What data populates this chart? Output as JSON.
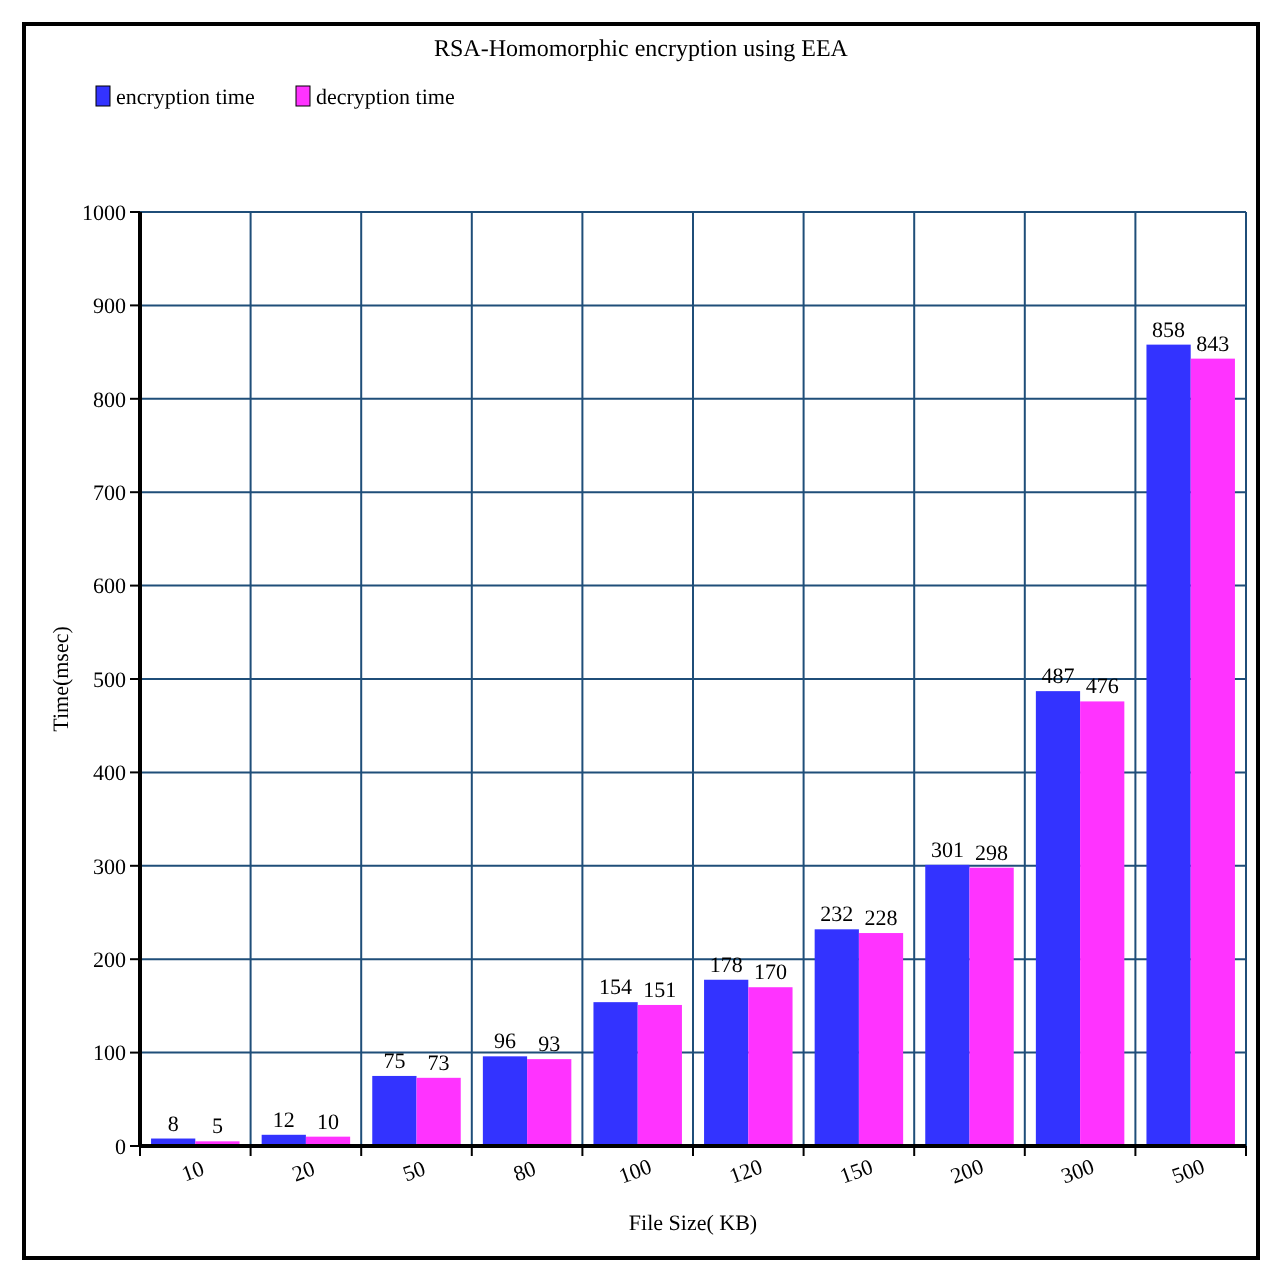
{
  "chart_data": {
    "type": "bar",
    "title": "RSA-Homomorphic encryption using EEA",
    "xlabel": "File Size( KB)",
    "ylabel": "Time(msec)",
    "categories": [
      "10",
      "20",
      "50",
      "80",
      "100",
      "120",
      "150",
      "200",
      "300",
      "500"
    ],
    "series": [
      {
        "name": "encryption time",
        "color": "#3333ff",
        "values": [
          8,
          12,
          75,
          96,
          154,
          178,
          232,
          301,
          487,
          858
        ]
      },
      {
        "name": "decryption time",
        "color": "#ff33ff",
        "values": [
          5,
          10,
          73,
          93,
          151,
          170,
          228,
          298,
          476,
          843
        ]
      }
    ],
    "ylim": [
      0,
      1000
    ],
    "yticks": [
      0,
      100,
      200,
      300,
      400,
      500,
      600,
      700,
      800,
      900,
      1000
    ],
    "grid": true,
    "legend": "top left",
    "data_labels": true
  }
}
